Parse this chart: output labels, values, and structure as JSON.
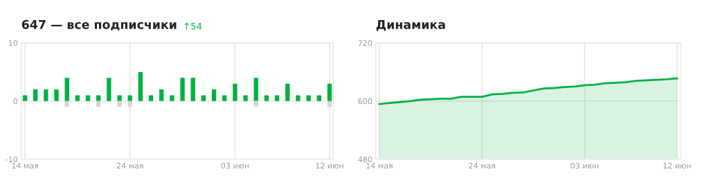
{
  "chart_data": [
    {
      "type": "bar",
      "title": "647 — все подписчики",
      "annotations": [
        "↑54"
      ],
      "grid": true,
      "legend": false,
      "categories": [
        "14 мая",
        null,
        null,
        null,
        null,
        null,
        null,
        null,
        null,
        null,
        "24 мая",
        null,
        null,
        null,
        null,
        null,
        null,
        null,
        null,
        null,
        "03 июн",
        null,
        null,
        null,
        null,
        null,
        null,
        null,
        null,
        "12 июн"
      ],
      "series": [
        {
          "color": "#00b140",
          "values": [
            1,
            2,
            2,
            2,
            4,
            1,
            1,
            1,
            4,
            1,
            1,
            5,
            1,
            2,
            1,
            4,
            4,
            1,
            2,
            1,
            3,
            1,
            4,
            1,
            1,
            3,
            1,
            1,
            1,
            3
          ]
        },
        {
          "color": "#d6d6d6",
          "values": [
            null,
            null,
            null,
            null,
            -1,
            null,
            null,
            -1,
            null,
            -1,
            -1,
            null,
            null,
            null,
            null,
            null,
            null,
            null,
            null,
            null,
            null,
            null,
            -1,
            null,
            null,
            null,
            null,
            null,
            null,
            -1
          ]
        }
      ],
      "ylim": [
        -10,
        10
      ],
      "yticks": [
        -10,
        0,
        10
      ]
    },
    {
      "type": "area",
      "title": "Динамика",
      "grid": true,
      "legend": false,
      "categories": [
        "14 мая",
        null,
        null,
        null,
        null,
        null,
        null,
        null,
        null,
        null,
        "24 мая",
        null,
        null,
        null,
        null,
        null,
        null,
        null,
        null,
        null,
        "03 июн",
        null,
        null,
        null,
        null,
        null,
        null,
        null,
        null,
        "12 июн"
      ],
      "series": [
        {
          "color": "#00b140",
          "values": [
            594,
            596,
            598,
            600,
            603,
            604,
            605,
            605,
            609,
            609,
            609,
            614,
            615,
            617,
            618,
            622,
            626,
            627,
            629,
            630,
            633,
            634,
            637,
            638,
            639,
            642,
            643,
            644,
            645,
            647
          ]
        }
      ],
      "ylim": [
        480,
        720
      ],
      "yticks": [
        480,
        600,
        720
      ]
    }
  ]
}
